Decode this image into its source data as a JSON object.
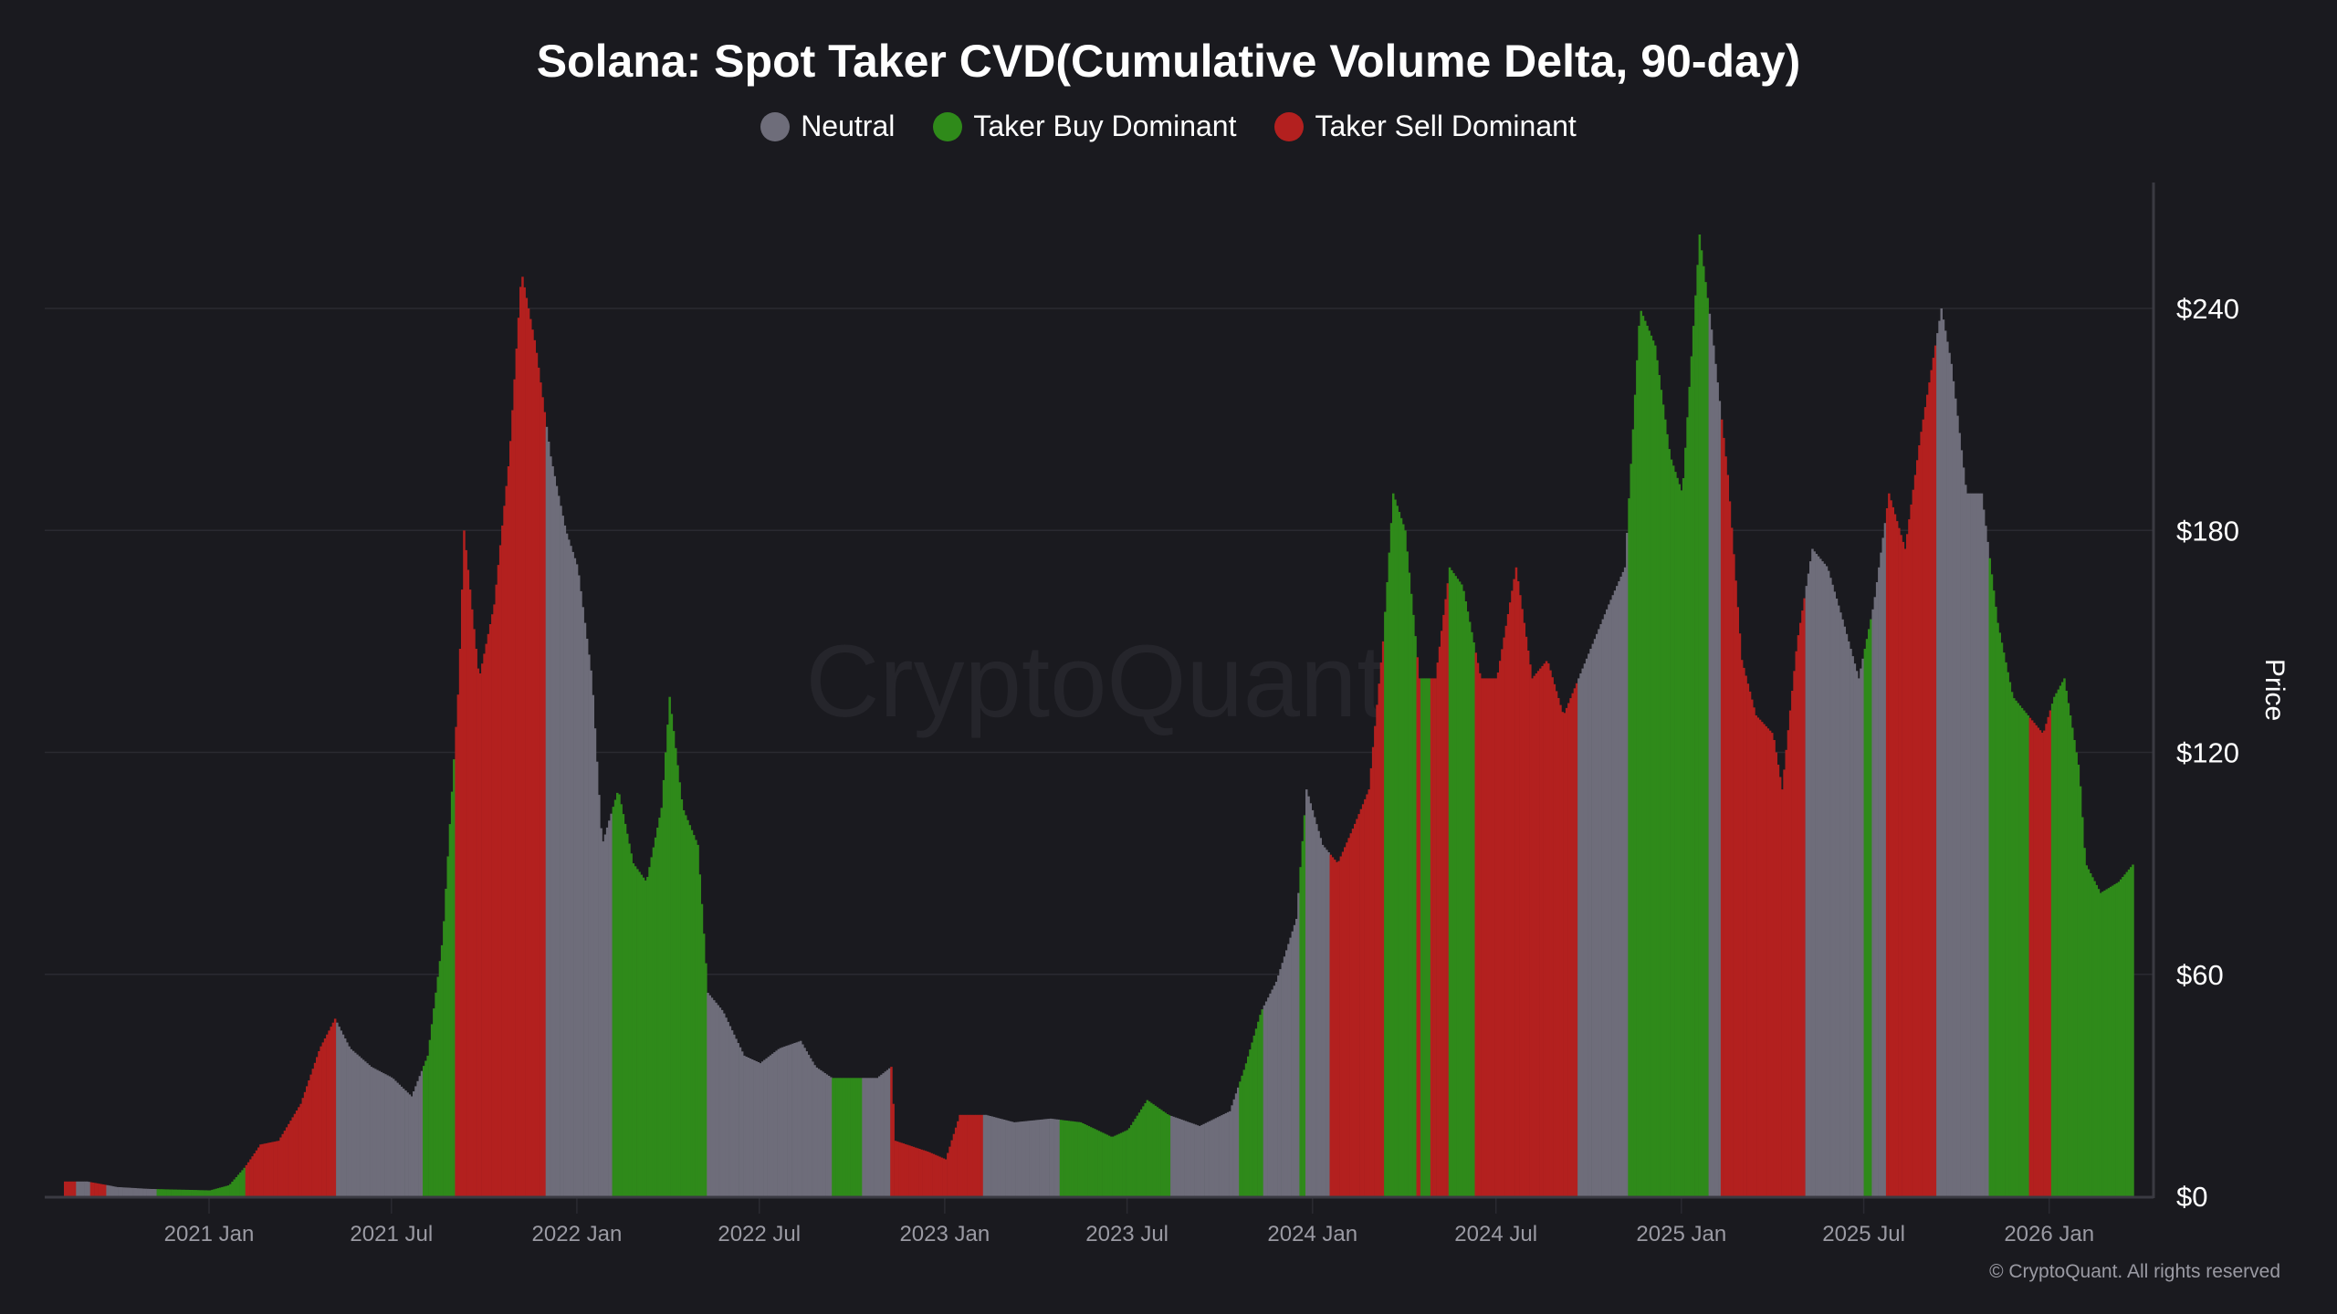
{
  "chart_data": {
    "type": "bar",
    "title": "Solana: Spot Taker CVD(Cumulative Volume Delta, 90-day)",
    "ylabel": "Price",
    "xlabel": "",
    "ylim": [
      0,
      270
    ],
    "y_ticks": [
      "$0",
      "$60",
      "$120",
      "$180",
      "$240"
    ],
    "y_tick_values": [
      0,
      60,
      120,
      180,
      240
    ],
    "x_ticks": [
      "2021 Jan",
      "2021 Jul",
      "2022 Jan",
      "2022 Jul",
      "2023 Jan",
      "2023 Jul",
      "2024 Jan",
      "2024 Jul",
      "2025 Jan",
      "2025 Jul",
      "2026 Jan"
    ],
    "x_tick_dates": [
      "2021-01-01",
      "2021-07-01",
      "2022-01-01",
      "2022-07-01",
      "2023-01-01",
      "2023-07-01",
      "2024-01-01",
      "2024-07-01",
      "2025-01-01",
      "2025-07-01",
      "2026-01-01"
    ],
    "y_axis_side": "right",
    "grid": true,
    "legend_position": "top",
    "legend": [
      {
        "key": "neutral",
        "label": "Neutral",
        "color": "#6e6d7a"
      },
      {
        "key": "buy",
        "label": "Taker Buy Dominant",
        "color": "#2f8a1a"
      },
      {
        "key": "sell",
        "label": "Taker Sell Dominant",
        "color": "#b3201f"
      }
    ],
    "price": [
      [
        "2020-08-10",
        4
      ],
      [
        "2020-09-01",
        4
      ],
      [
        "2020-10-01",
        2.5
      ],
      [
        "2020-11-01",
        2
      ],
      [
        "2020-12-01",
        1.8
      ],
      [
        "2021-01-01",
        1.6
      ],
      [
        "2021-01-20",
        3
      ],
      [
        "2021-02-05",
        8
      ],
      [
        "2021-02-20",
        14
      ],
      [
        "2021-03-10",
        15
      ],
      [
        "2021-04-01",
        25
      ],
      [
        "2021-04-20",
        40
      ],
      [
        "2021-05-05",
        48
      ],
      [
        "2021-05-20",
        40
      ],
      [
        "2021-06-10",
        35
      ],
      [
        "2021-07-01",
        32
      ],
      [
        "2021-07-20",
        27
      ],
      [
        "2021-08-05",
        38
      ],
      [
        "2021-08-20",
        70
      ],
      [
        "2021-09-05",
        140
      ],
      [
        "2021-09-10",
        180
      ],
      [
        "2021-09-25",
        140
      ],
      [
        "2021-10-10",
        160
      ],
      [
        "2021-10-25",
        200
      ],
      [
        "2021-11-06",
        250
      ],
      [
        "2021-11-20",
        230
      ],
      [
        "2021-12-05",
        200
      ],
      [
        "2021-12-20",
        180
      ],
      [
        "2022-01-01",
        170
      ],
      [
        "2022-01-15",
        140
      ],
      [
        "2022-01-25",
        95
      ],
      [
        "2022-02-10",
        110
      ],
      [
        "2022-02-25",
        90
      ],
      [
        "2022-03-10",
        85
      ],
      [
        "2022-03-25",
        105
      ],
      [
        "2022-04-02",
        135
      ],
      [
        "2022-04-15",
        105
      ],
      [
        "2022-04-30",
        95
      ],
      [
        "2022-05-10",
        55
      ],
      [
        "2022-05-25",
        50
      ],
      [
        "2022-06-15",
        38
      ],
      [
        "2022-07-01",
        36
      ],
      [
        "2022-07-20",
        40
      ],
      [
        "2022-08-10",
        42
      ],
      [
        "2022-08-25",
        35
      ],
      [
        "2022-09-10",
        32
      ],
      [
        "2022-10-01",
        32
      ],
      [
        "2022-10-25",
        32
      ],
      [
        "2022-11-08",
        35
      ],
      [
        "2022-11-12",
        15
      ],
      [
        "2022-12-15",
        12
      ],
      [
        "2023-01-01",
        10
      ],
      [
        "2023-01-15",
        22
      ],
      [
        "2023-02-10",
        22
      ],
      [
        "2023-03-10",
        20
      ],
      [
        "2023-04-15",
        21
      ],
      [
        "2023-05-15",
        20
      ],
      [
        "2023-06-15",
        16
      ],
      [
        "2023-07-01",
        18
      ],
      [
        "2023-07-20",
        26
      ],
      [
        "2023-08-10",
        22
      ],
      [
        "2023-09-10",
        19
      ],
      [
        "2023-10-10",
        23
      ],
      [
        "2023-10-25",
        35
      ],
      [
        "2023-11-10",
        50
      ],
      [
        "2023-11-25",
        58
      ],
      [
        "2023-12-15",
        75
      ],
      [
        "2023-12-25",
        110
      ],
      [
        "2024-01-10",
        95
      ],
      [
        "2024-01-25",
        90
      ],
      [
        "2024-02-10",
        100
      ],
      [
        "2024-02-25",
        110
      ],
      [
        "2024-03-10",
        150
      ],
      [
        "2024-03-20",
        190
      ],
      [
        "2024-04-01",
        180
      ],
      [
        "2024-04-15",
        140
      ],
      [
        "2024-05-01",
        140
      ],
      [
        "2024-05-15",
        170
      ],
      [
        "2024-05-28",
        165
      ],
      [
        "2024-06-15",
        140
      ],
      [
        "2024-07-01",
        140
      ],
      [
        "2024-07-20",
        170
      ],
      [
        "2024-08-05",
        140
      ],
      [
        "2024-08-20",
        145
      ],
      [
        "2024-09-05",
        130
      ],
      [
        "2024-09-20",
        140
      ],
      [
        "2024-10-05",
        150
      ],
      [
        "2024-10-20",
        160
      ],
      [
        "2024-11-05",
        170
      ],
      [
        "2024-11-20",
        240
      ],
      [
        "2024-12-05",
        230
      ],
      [
        "2024-12-20",
        200
      ],
      [
        "2025-01-01",
        190
      ],
      [
        "2025-01-18",
        260
      ],
      [
        "2025-02-01",
        230
      ],
      [
        "2025-02-15",
        195
      ],
      [
        "2025-03-01",
        145
      ],
      [
        "2025-03-15",
        130
      ],
      [
        "2025-04-01",
        125
      ],
      [
        "2025-04-10",
        110
      ],
      [
        "2025-04-25",
        150
      ],
      [
        "2025-05-10",
        175
      ],
      [
        "2025-05-25",
        170
      ],
      [
        "2025-06-10",
        155
      ],
      [
        "2025-06-25",
        140
      ],
      [
        "2025-07-10",
        160
      ],
      [
        "2025-07-25",
        190
      ],
      [
        "2025-08-10",
        175
      ],
      [
        "2025-08-25",
        205
      ],
      [
        "2025-09-15",
        240
      ],
      [
        "2025-09-25",
        225
      ],
      [
        "2025-10-10",
        190
      ],
      [
        "2025-10-25",
        190
      ],
      [
        "2025-11-10",
        155
      ],
      [
        "2025-11-25",
        135
      ],
      [
        "2025-12-10",
        130
      ],
      [
        "2025-12-25",
        125
      ],
      [
        "2026-01-05",
        135
      ],
      [
        "2026-01-15",
        140
      ],
      [
        "2026-01-30",
        115
      ],
      [
        "2026-02-05",
        90
      ],
      [
        "2026-02-20",
        82
      ],
      [
        "2026-03-10",
        85
      ],
      [
        "2026-03-25",
        90
      ]
    ],
    "regimes": [
      [
        "2020-08-10",
        "2020-08-22",
        "sell"
      ],
      [
        "2020-08-22",
        "2020-09-05",
        "neutral"
      ],
      [
        "2020-09-05",
        "2020-09-20",
        "sell"
      ],
      [
        "2020-09-20",
        "2020-11-10",
        "neutral"
      ],
      [
        "2020-11-10",
        "2021-02-05",
        "buy"
      ],
      [
        "2021-02-05",
        "2021-05-06",
        "sell"
      ],
      [
        "2021-05-06",
        "2021-07-31",
        "neutral"
      ],
      [
        "2021-07-31",
        "2021-09-02",
        "buy"
      ],
      [
        "2021-09-02",
        "2021-12-01",
        "sell"
      ],
      [
        "2021-12-01",
        "2022-02-05",
        "neutral"
      ],
      [
        "2022-02-05",
        "2022-05-10",
        "buy"
      ],
      [
        "2022-05-10",
        "2022-09-10",
        "neutral"
      ],
      [
        "2022-09-10",
        "2022-10-10",
        "buy"
      ],
      [
        "2022-10-10",
        "2022-11-08",
        "neutral"
      ],
      [
        "2022-11-08",
        "2023-02-08",
        "sell"
      ],
      [
        "2023-02-08",
        "2023-04-25",
        "neutral"
      ],
      [
        "2023-04-25",
        "2023-08-12",
        "buy"
      ],
      [
        "2023-08-12",
        "2023-10-20",
        "neutral"
      ],
      [
        "2023-10-20",
        "2023-11-12",
        "buy"
      ],
      [
        "2023-11-12",
        "2023-12-18",
        "neutral"
      ],
      [
        "2023-12-18",
        "2023-12-25",
        "buy"
      ],
      [
        "2023-12-25",
        "2024-01-17",
        "neutral"
      ],
      [
        "2024-01-17",
        "2024-03-12",
        "sell"
      ],
      [
        "2024-03-12",
        "2024-04-12",
        "buy"
      ],
      [
        "2024-04-12",
        "2024-04-17",
        "sell"
      ],
      [
        "2024-04-17",
        "2024-04-27",
        "buy"
      ],
      [
        "2024-04-27",
        "2024-05-15",
        "sell"
      ],
      [
        "2024-05-15",
        "2024-06-09",
        "buy"
      ],
      [
        "2024-06-09",
        "2024-09-19",
        "sell"
      ],
      [
        "2024-09-19",
        "2024-11-08",
        "neutral"
      ],
      [
        "2024-11-08",
        "2025-01-28",
        "buy"
      ],
      [
        "2025-01-28",
        "2025-02-08",
        "neutral"
      ],
      [
        "2025-02-08",
        "2025-05-03",
        "sell"
      ],
      [
        "2025-05-03",
        "2025-07-01",
        "neutral"
      ],
      [
        "2025-07-01",
        "2025-07-08",
        "buy"
      ],
      [
        "2025-07-08",
        "2025-07-23",
        "neutral"
      ],
      [
        "2025-07-23",
        "2025-09-10",
        "sell"
      ],
      [
        "2025-09-10",
        "2025-11-01",
        "neutral"
      ],
      [
        "2025-11-01",
        "2025-12-11",
        "buy"
      ],
      [
        "2025-12-11",
        "2026-01-02",
        "sell"
      ],
      [
        "2026-01-02",
        "2026-03-26",
        "buy"
      ]
    ]
  },
  "watermark": "CryptoQuant",
  "copyright": "© CryptoQuant. All rights reserved"
}
